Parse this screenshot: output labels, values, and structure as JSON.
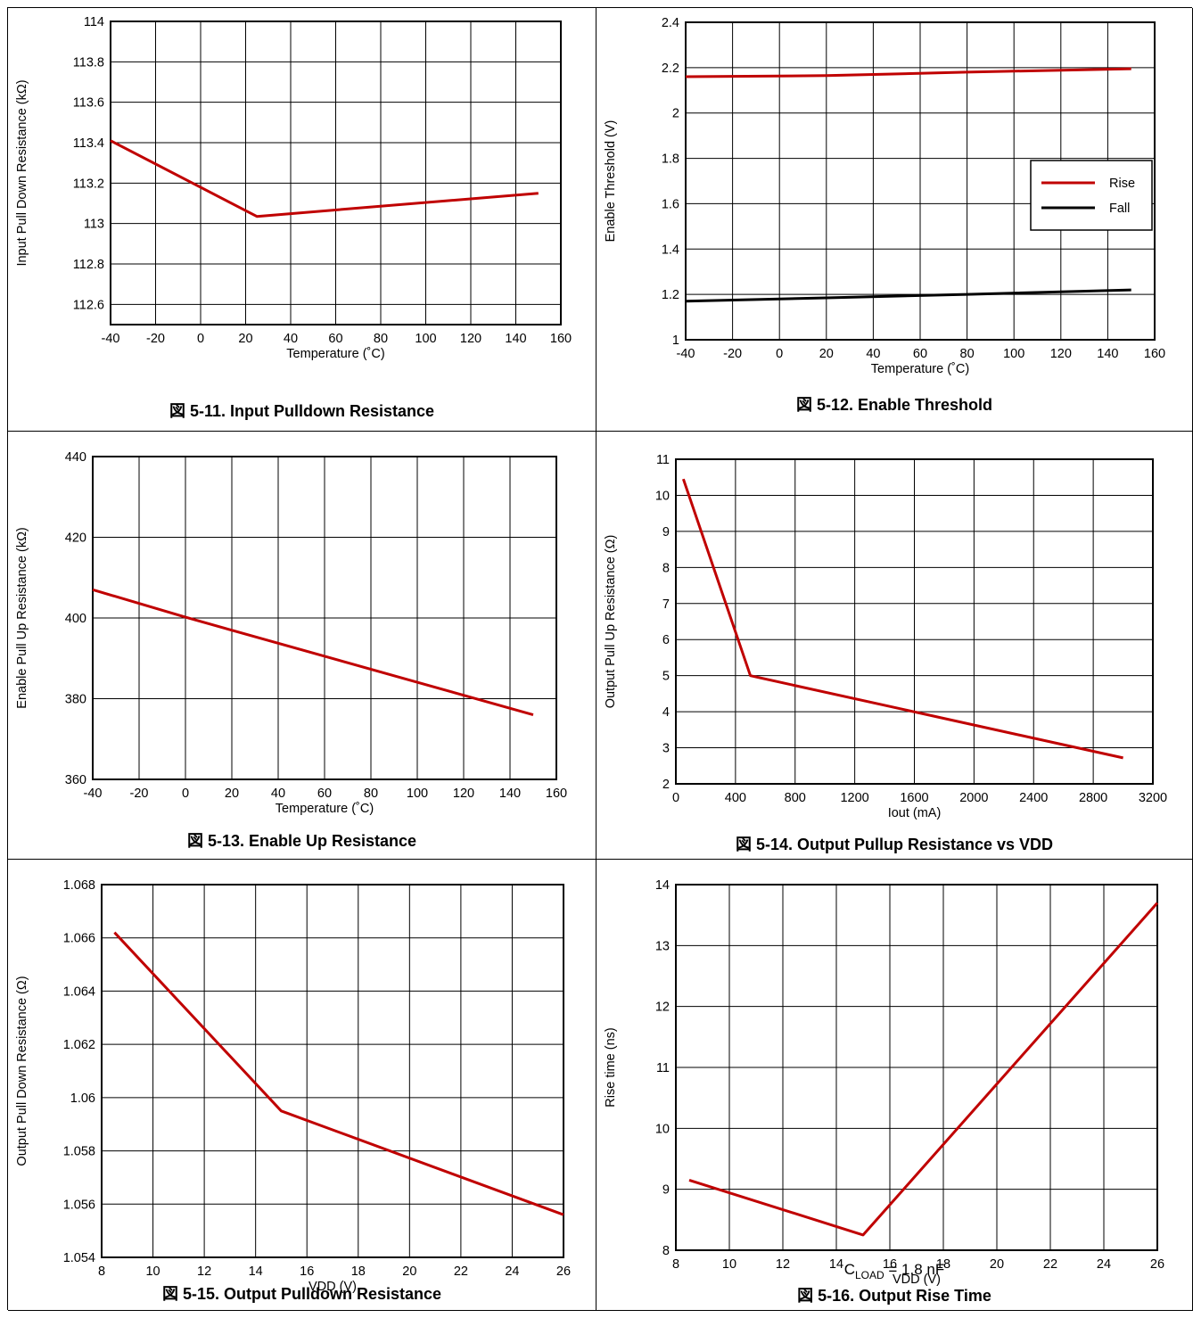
{
  "chart_data": [
    {
      "id": "fig-5-11",
      "type": "line",
      "caption": "図 5-11. Input Pulldown Resistance",
      "xlabel": "Temperature (˚C)",
      "ylabel": "Input Pull Down Resistance (kΩ)",
      "xlim": [
        -40,
        160
      ],
      "ylim": [
        112.5,
        114
      ],
      "xticks": [
        -40,
        -20,
        0,
        20,
        40,
        60,
        80,
        100,
        120,
        140,
        160
      ],
      "yticks": [
        112.6,
        112.8,
        113,
        113.2,
        113.4,
        113.6,
        113.8,
        114
      ],
      "ytick_labels": [
        "112.6",
        "112.8",
        "113",
        "113.2",
        "113.4",
        "113.6",
        "113.8",
        "114"
      ],
      "grid": true,
      "series": [
        {
          "color": "#c00000",
          "points": [
            [
              -40,
              113.41
            ],
            [
              25,
              113.035
            ],
            [
              150,
              113.15
            ]
          ]
        }
      ]
    },
    {
      "id": "fig-5-12",
      "type": "line",
      "caption": "図 5-12. Enable Threshold",
      "xlabel": "Temperature (˚C)",
      "ylabel": "Enable Threshold (V)",
      "xlim": [
        -40,
        160
      ],
      "ylim": [
        1,
        2.4
      ],
      "xticks": [
        -40,
        -20,
        0,
        20,
        40,
        60,
        80,
        100,
        120,
        140,
        160
      ],
      "yticks": [
        1,
        1.2,
        1.4,
        1.6,
        1.8,
        2,
        2.2,
        2.4
      ],
      "ytick_labels": [
        "1",
        "1.2",
        "1.4",
        "1.6",
        "1.8",
        "2",
        "2.2",
        "2.4"
      ],
      "grid": true,
      "legend_position": "right",
      "series": [
        {
          "name": "Rise",
          "color": "#c00000",
          "points": [
            [
              -40,
              2.16
            ],
            [
              20,
              2.165
            ],
            [
              80,
              2.18
            ],
            [
              150,
              2.195
            ]
          ]
        },
        {
          "name": "Fall",
          "color": "#000000",
          "points": [
            [
              -40,
              1.17
            ],
            [
              20,
              1.185
            ],
            [
              80,
              1.2
            ],
            [
              150,
              1.22
            ]
          ]
        }
      ]
    },
    {
      "id": "fig-5-13",
      "type": "line",
      "caption": "図 5-13. Enable Up Resistance",
      "xlabel": "Temperature (˚C)",
      "ylabel": "Enable Pull Up Resistance (kΩ)",
      "xlim": [
        -40,
        160
      ],
      "ylim": [
        360,
        440
      ],
      "xticks": [
        -40,
        -20,
        0,
        20,
        40,
        60,
        80,
        100,
        120,
        140,
        160
      ],
      "yticks": [
        360,
        380,
        400,
        420,
        440
      ],
      "ytick_labels": [
        "360",
        "380",
        "400",
        "420",
        "440"
      ],
      "grid": true,
      "minor_x": 1,
      "series": [
        {
          "color": "#c00000",
          "points": [
            [
              -40,
              407
            ],
            [
              0,
              400.2
            ],
            [
              150,
              376
            ]
          ]
        }
      ]
    },
    {
      "id": "fig-5-14",
      "type": "line",
      "caption": "図 5-14. Output Pullup Resistance vs VDD",
      "xlabel": "Iout (mA)",
      "ylabel": "Output Pull Up Resistance (Ω)",
      "xlim": [
        0,
        3200
      ],
      "ylim": [
        2,
        11
      ],
      "xticks": [
        0,
        400,
        800,
        1200,
        1600,
        2000,
        2400,
        2800,
        3200
      ],
      "yticks": [
        2,
        3,
        4,
        5,
        6,
        7,
        8,
        9,
        10,
        11
      ],
      "ytick_labels": [
        "2",
        "3",
        "4",
        "5",
        "6",
        "7",
        "8",
        "9",
        "10",
        "11"
      ],
      "grid": true,
      "minor_x": 1,
      "series": [
        {
          "color": "#c00000",
          "points": [
            [
              50,
              10.45
            ],
            [
              500,
              5.0
            ],
            [
              3000,
              2.72
            ]
          ]
        }
      ]
    },
    {
      "id": "fig-5-15",
      "type": "line",
      "caption": "図 5-15. Output Pulldown Resistance",
      "xlabel": "VDD (V)",
      "ylabel": "Output Pull Down Resistance (Ω)",
      "xlim": [
        8,
        26
      ],
      "ylim": [
        1.054,
        1.068
      ],
      "xticks": [
        8,
        10,
        12,
        14,
        16,
        18,
        20,
        22,
        24,
        26
      ],
      "yticks": [
        1.054,
        1.056,
        1.058,
        1.06,
        1.062,
        1.064,
        1.066,
        1.068
      ],
      "ytick_labels": [
        "1.054",
        "1.056",
        "1.058",
        "1.06",
        "1.062",
        "1.064",
        "1.066",
        "1.068"
      ],
      "grid": true,
      "series": [
        {
          "color": "#c00000",
          "points": [
            [
              8.5,
              1.0662
            ],
            [
              15,
              1.0595
            ],
            [
              26,
              1.0556
            ]
          ]
        }
      ]
    },
    {
      "id": "fig-5-16",
      "type": "line",
      "caption": "図 5-16. Output Rise Time",
      "note": {
        "prefix": "C",
        "sub": "LOAD",
        "suffix": " = 1.8 nF"
      },
      "xlabel": "VDD (V)",
      "ylabel": "Rise time (ns)",
      "xlim": [
        8,
        26
      ],
      "ylim": [
        8,
        14
      ],
      "xticks": [
        8,
        10,
        12,
        14,
        16,
        18,
        20,
        22,
        24,
        26
      ],
      "yticks": [
        8,
        9,
        10,
        11,
        12,
        13,
        14
      ],
      "ytick_labels": [
        "8",
        "9",
        "10",
        "11",
        "12",
        "13",
        "14"
      ],
      "grid": true,
      "series": [
        {
          "color": "#c00000",
          "points": [
            [
              8.5,
              9.15
            ],
            [
              15,
              8.25
            ],
            [
              26,
              13.7
            ]
          ]
        }
      ]
    }
  ]
}
